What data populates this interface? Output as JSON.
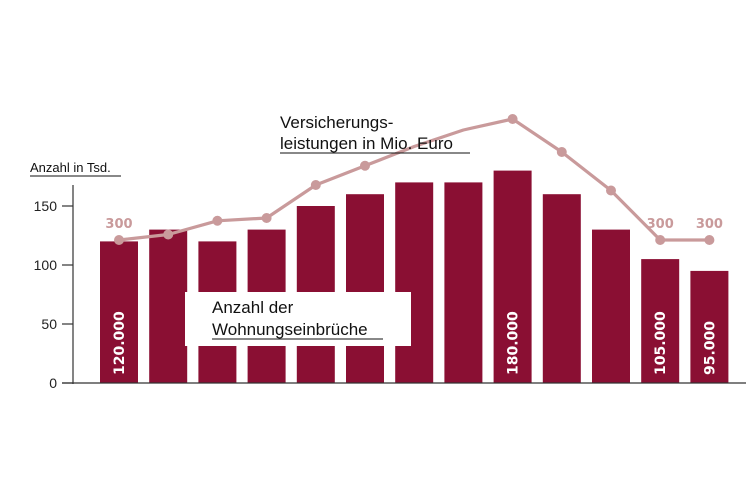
{
  "chart_data": {
    "type": "bar",
    "ylabel": "Anzahl in Tsd.",
    "ylim": [
      0,
      175
    ],
    "yticks": [
      0,
      50,
      100,
      150
    ],
    "grid": false,
    "series": [
      {
        "name": "Anzahl der Wohnungseinbrüche",
        "type": "bar",
        "values": [
          120,
          130,
          120,
          130,
          150,
          160,
          170,
          170,
          180,
          160,
          130,
          105,
          95
        ],
        "data_labels": [
          "120.000",
          "",
          "",
          "",
          "",
          "",
          "",
          "",
          "180.000",
          "",
          "",
          "105.000",
          "95.000"
        ]
      },
      {
        "name": "Versicherungs- leistungen in Mio. Euro",
        "type": "line",
        "values": [
          300,
          310,
          335,
          340,
          400,
          435,
          470,
          500,
          520,
          460,
          390,
          300,
          300
        ],
        "data_labels": [
          "300",
          "",
          "",
          "",
          "",
          "",
          "",
          "",
          "",
          "",
          "",
          "300",
          "300"
        ]
      }
    ],
    "annotations": {
      "line_label_1": "Versicherungs-",
      "line_label_2": "leistungen in Mio. Euro",
      "bar_label_1": "Anzahl der",
      "bar_label_2": "Wohnungseinbrüche"
    },
    "colors": {
      "bar": "#8a0f33",
      "line": "#c99a9b",
      "axis": "#333333"
    }
  }
}
